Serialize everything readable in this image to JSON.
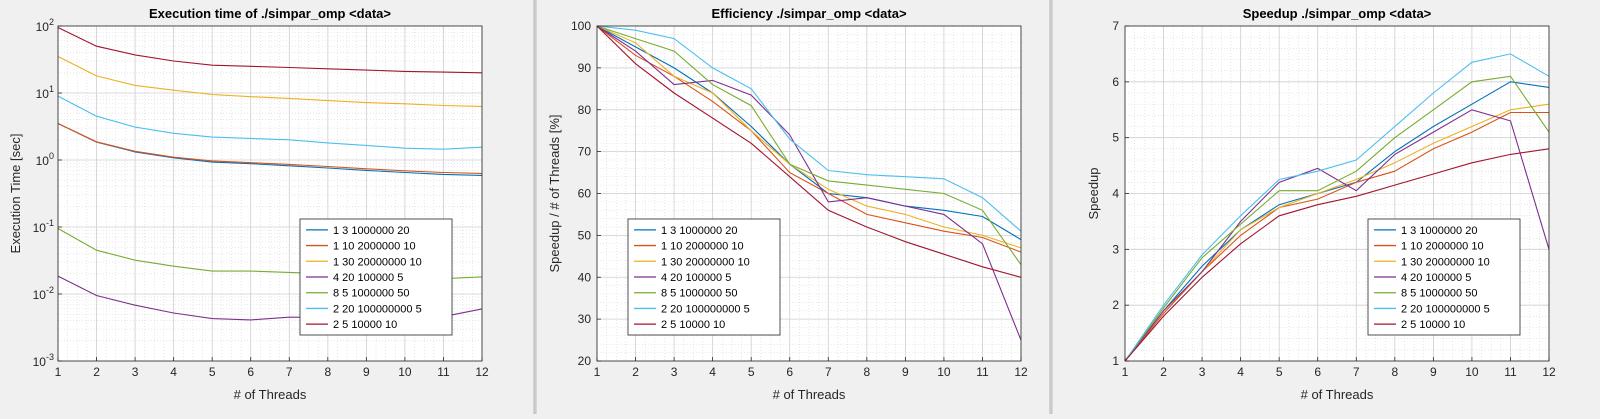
{
  "colors": [
    "#0072BD",
    "#D95319",
    "#EDB120",
    "#7E2F8E",
    "#77AC30",
    "#4DBEEE",
    "#A2142F"
  ],
  "legend_entries": [
    "1 3    1000000      20",
    "1 10  2000000      10",
    "1 30  20000000    10",
    "4 20  100000        5",
    "8 5    1000000      50",
    "2 20  100000000  5",
    "2 5    10000          10"
  ],
  "chart_data": [
    {
      "type": "line",
      "title": "Execution time of ./simpar_omp <data>",
      "xlabel": "# of Threads",
      "ylabel": "Execution Time [sec]",
      "yscale": "log",
      "xlim": [
        1,
        12
      ],
      "ylim": [
        0.001,
        100
      ],
      "x": [
        1,
        2,
        3,
        4,
        5,
        6,
        7,
        8,
        9,
        10,
        11,
        12
      ],
      "xticks": [
        "1",
        "2",
        "3",
        "4",
        "5",
        "6",
        "7",
        "8",
        "9",
        "10",
        "11",
        "12"
      ],
      "yticks": [
        {
          "v": 0.001,
          "base": "10",
          "exp": "-3"
        },
        {
          "v": 0.01,
          "base": "10",
          "exp": "-2"
        },
        {
          "v": 0.1,
          "base": "10",
          "exp": "-1"
        },
        {
          "v": 1,
          "base": "10",
          "exp": "0"
        },
        {
          "v": 10,
          "base": "10",
          "exp": "1"
        },
        {
          "v": 100,
          "base": "10",
          "exp": "2"
        }
      ],
      "grid": true,
      "legend_position": "bottom-right",
      "series": [
        {
          "name": "1 3    1000000      20",
          "values": [
            3.5,
            1.85,
            1.32,
            1.08,
            0.93,
            0.88,
            0.82,
            0.76,
            0.7,
            0.65,
            0.61,
            0.59
          ]
        },
        {
          "name": "1 10  2000000      10",
          "values": [
            3.5,
            1.87,
            1.35,
            1.1,
            0.97,
            0.91,
            0.86,
            0.8,
            0.74,
            0.69,
            0.65,
            0.63
          ]
        },
        {
          "name": "1 30  20000000    10",
          "values": [
            35,
            18,
            13,
            11,
            9.5,
            8.8,
            8.3,
            7.7,
            7.2,
            6.9,
            6.5,
            6.3
          ]
        },
        {
          "name": "4 20  100000        5",
          "values": [
            0.0185,
            0.0095,
            0.0068,
            0.0052,
            0.0043,
            0.0041,
            0.0045,
            0.0045,
            0.0043,
            0.0044,
            0.0046,
            0.006
          ]
        },
        {
          "name": "8 5    1000000      50",
          "values": [
            0.095,
            0.045,
            0.032,
            0.026,
            0.022,
            0.022,
            0.021,
            0.02,
            0.019,
            0.018,
            0.017,
            0.018
          ]
        },
        {
          "name": "2 20  100000000  5",
          "values": [
            9.0,
            4.5,
            3.1,
            2.5,
            2.2,
            2.1,
            2.0,
            1.8,
            1.65,
            1.5,
            1.45,
            1.55
          ]
        },
        {
          "name": "2 5    10000          10",
          "values": [
            95,
            50,
            37,
            30,
            26,
            25,
            24,
            23,
            22,
            21,
            20.5,
            20
          ]
        }
      ]
    },
    {
      "type": "line",
      "title": "Efficiency ./simpar_omp <data>",
      "xlabel": "# of Threads",
      "ylabel": "Speedup / # of Threads [%]",
      "xlim": [
        1,
        12
      ],
      "ylim": [
        20,
        100
      ],
      "x": [
        1,
        2,
        3,
        4,
        5,
        6,
        7,
        8,
        9,
        10,
        11,
        12
      ],
      "xticks": [
        "1",
        "2",
        "3",
        "4",
        "5",
        "6",
        "7",
        "8",
        "9",
        "10",
        "11",
        "12"
      ],
      "yticks": [
        {
          "v": 20,
          "label": "20"
        },
        {
          "v": 30,
          "label": "30"
        },
        {
          "v": 40,
          "label": "40"
        },
        {
          "v": 50,
          "label": "50"
        },
        {
          "v": 60,
          "label": "60"
        },
        {
          "v": 70,
          "label": "70"
        },
        {
          "v": 80,
          "label": "80"
        },
        {
          "v": 90,
          "label": "90"
        },
        {
          "v": 100,
          "label": "100"
        }
      ],
      "grid": true,
      "legend_position": "bottom-left",
      "series": [
        {
          "name": "1 3    1000000      20",
          "values": [
            100,
            95,
            90,
            84,
            76,
            67,
            60,
            59,
            57,
            56,
            54.5,
            49
          ]
        },
        {
          "name": "1 10  2000000      10",
          "values": [
            100,
            93,
            88,
            82,
            75,
            65,
            60,
            55,
            53,
            51,
            49.5,
            46
          ]
        },
        {
          "name": "1 30  20000000    10",
          "values": [
            100,
            96,
            88,
            84,
            75,
            67,
            61,
            57,
            55,
            52,
            50,
            47
          ]
        },
        {
          "name": "4 20  100000        5",
          "values": [
            100,
            94,
            86,
            87,
            83.5,
            74,
            58,
            59,
            57,
            55,
            48,
            25
          ]
        },
        {
          "name": "8 5    1000000      50",
          "values": [
            100,
            97,
            94,
            86,
            81,
            67,
            63,
            62,
            61,
            60,
            56,
            43
          ]
        },
        {
          "name": "2 20  100000000  5",
          "values": [
            100,
            99,
            97,
            90,
            85,
            73,
            65.5,
            64.5,
            64,
            63.5,
            59,
            51
          ]
        },
        {
          "name": "2 5    10000          10",
          "values": [
            100,
            91,
            84,
            78,
            72,
            64,
            56,
            52,
            48.5,
            45.5,
            42.5,
            40
          ]
        }
      ]
    },
    {
      "type": "line",
      "title": "Speedup ./simpar_omp <data>",
      "xlabel": "# of Threads",
      "ylabel": "Speedup",
      "xlim": [
        1,
        12
      ],
      "ylim": [
        1,
        7
      ],
      "x": [
        1,
        2,
        3,
        4,
        5,
        6,
        7,
        8,
        9,
        10,
        11,
        12
      ],
      "xticks": [
        "1",
        "2",
        "3",
        "4",
        "5",
        "6",
        "7",
        "8",
        "9",
        "10",
        "11",
        "12"
      ],
      "yticks": [
        {
          "v": 1,
          "label": "1"
        },
        {
          "v": 2,
          "label": "2"
        },
        {
          "v": 3,
          "label": "3"
        },
        {
          "v": 4,
          "label": "4"
        },
        {
          "v": 5,
          "label": "5"
        },
        {
          "v": 6,
          "label": "6"
        },
        {
          "v": 7,
          "label": "7"
        }
      ],
      "grid": true,
      "legend_position": "bottom-right",
      "series": [
        {
          "name": "1 3    1000000      20",
          "values": [
            1,
            1.9,
            2.7,
            3.35,
            3.8,
            4.0,
            4.2,
            4.75,
            5.2,
            5.6,
            6.0,
            5.9
          ]
        },
        {
          "name": "1 10  2000000      10",
          "values": [
            1,
            1.85,
            2.6,
            3.25,
            3.75,
            3.9,
            4.2,
            4.4,
            4.8,
            5.1,
            5.45,
            5.45
          ]
        },
        {
          "name": "1 30  20000000    10",
          "values": [
            1,
            1.9,
            2.6,
            3.35,
            3.75,
            4.0,
            4.25,
            4.55,
            4.9,
            5.2,
            5.5,
            5.6
          ]
        },
        {
          "name": "4 20  100000        5",
          "values": [
            1,
            1.9,
            2.6,
            3.5,
            4.2,
            4.45,
            4.05,
            4.7,
            5.1,
            5.5,
            5.3,
            3.0
          ]
        },
        {
          "name": "8 5    1000000      50",
          "values": [
            1,
            1.95,
            2.85,
            3.45,
            4.05,
            4.05,
            4.4,
            5.0,
            5.5,
            6.0,
            6.1,
            5.1
          ]
        },
        {
          "name": "2 20  100000000  5",
          "values": [
            1,
            2.0,
            2.9,
            3.6,
            4.25,
            4.4,
            4.6,
            5.2,
            5.8,
            6.35,
            6.5,
            6.1
          ]
        },
        {
          "name": "2 5    10000          10",
          "values": [
            1,
            1.8,
            2.5,
            3.1,
            3.6,
            3.8,
            3.95,
            4.15,
            4.35,
            4.55,
            4.7,
            4.8
          ]
        }
      ]
    }
  ]
}
